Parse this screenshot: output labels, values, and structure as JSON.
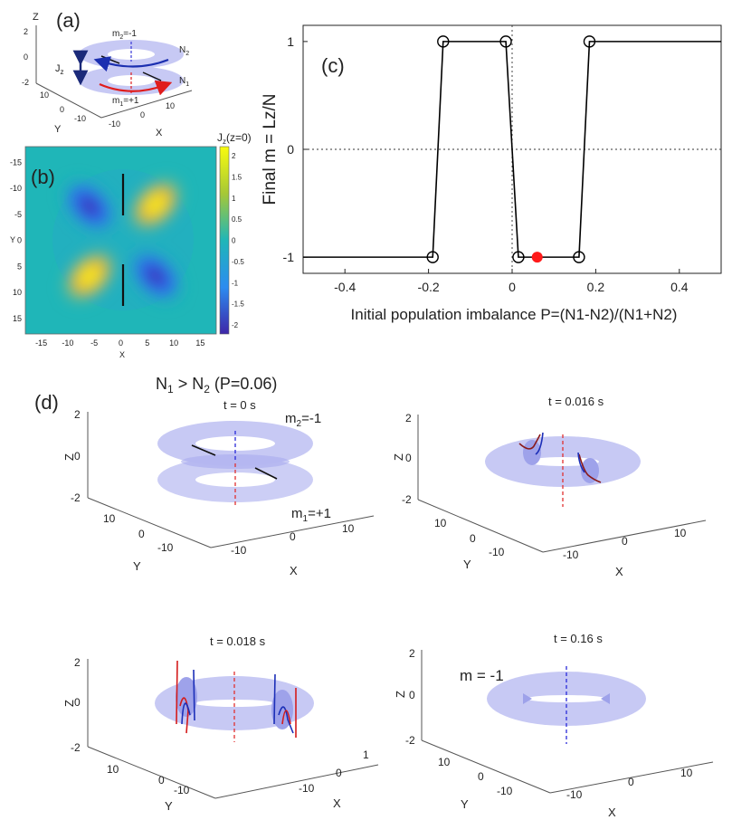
{
  "panels": {
    "a": {
      "tag": "(a)",
      "axes": {
        "z": "Z",
        "y": "Y",
        "x": "X",
        "ticks_z": [
          "2",
          "0",
          "-2"
        ],
        "ticks_y": [
          "10",
          "0",
          "-10"
        ],
        "ticks_x": [
          "-10",
          "0",
          "10"
        ]
      },
      "labels": {
        "m2": "m",
        "m2_sub": "2",
        "m2_val": "=-1",
        "m1": "m",
        "m1_sub": "1",
        "m1_val": "=+1",
        "n2": "N",
        "n2_sub": "2",
        "n1": "N",
        "n1_sub": "1",
        "jz": "J",
        "jz_sub": "z"
      }
    },
    "b": {
      "tag": "(b)",
      "colorbar_title": "J",
      "colorbar_title_sub": "z",
      "colorbar_title_rest": "(z=0)",
      "colorbar_ticks": [
        "2",
        "1.5",
        "1",
        "0.5",
        "0",
        "-0.5",
        "-1",
        "-1.5",
        "-2"
      ],
      "xlabel": "X",
      "ylabel": "Y",
      "xticks": [
        "-15",
        "-10",
        "-5",
        "0",
        "5",
        "10",
        "15"
      ],
      "yticks": [
        "-15",
        "-10",
        "-5",
        "0",
        "5",
        "10",
        "15"
      ]
    },
    "c": {
      "tag": "(c)"
    },
    "d": {
      "tag": "(d)",
      "title": "N",
      "title_sub1": "1",
      "title_mid": " > N",
      "title_sub2": "2",
      "title_rest": " (P=0.06)",
      "subplots": [
        {
          "time": "t = 0 s",
          "note_m2": "m",
          "note_m2_sub": "2",
          "note_m2_val": "=-1",
          "note_m1": "m",
          "note_m1_sub": "1",
          "note_m1_val": "=+1"
        },
        {
          "time": "t = 0.016 s"
        },
        {
          "time": "t = 0.018 s"
        },
        {
          "time": "t = 0.16 s",
          "note": "m = -1"
        }
      ],
      "zticks": [
        "2",
        "0",
        "-2"
      ],
      "yticks": [
        "10",
        "0",
        "-10"
      ],
      "xticks": [
        "-10",
        "0",
        "10"
      ],
      "xticks_c": [
        "-10",
        "0",
        "1"
      ],
      "zlabel": "Z",
      "ylabel": "Y",
      "xlabel": "X"
    }
  },
  "chart_data": {
    "type": "line",
    "title": "(c)",
    "xlabel": "Initial population imbalance P=(N1-N2)/(N1+N2)",
    "ylabel": "Final  m = Lz/N",
    "xlim": [
      -0.5,
      0.5
    ],
    "ylim": [
      -1.15,
      1.15
    ],
    "xticks": [
      -0.4,
      -0.2,
      0,
      0.2,
      0.4
    ],
    "xtick_labels": [
      "-0.4",
      "-0.2",
      "0",
      "0.2",
      "0.4"
    ],
    "yticks": [
      -1,
      0,
      1
    ],
    "ytick_labels": [
      "-1",
      "0",
      "1"
    ],
    "series": [
      {
        "name": "final m",
        "x": [
          -0.5,
          -0.19,
          -0.165,
          -0.015,
          0.015,
          0.16,
          0.185,
          0.5
        ],
        "y": [
          -1,
          -1,
          1,
          1,
          -1,
          -1,
          1,
          1
        ]
      }
    ],
    "markers": [
      {
        "x": -0.19,
        "y": -1
      },
      {
        "x": -0.165,
        "y": 1
      },
      {
        "x": -0.015,
        "y": 1
      },
      {
        "x": 0.015,
        "y": -1
      },
      {
        "x": 0.16,
        "y": -1
      },
      {
        "x": 0.185,
        "y": 1
      }
    ],
    "highlight": {
      "x": 0.06,
      "y": -1,
      "color": "#ff1a1a"
    },
    "reference_lines": {
      "h": 0,
      "v": 0,
      "style": "dotted"
    },
    "colors": {
      "line": "#000000",
      "highlight": "#ff1a1a"
    }
  }
}
